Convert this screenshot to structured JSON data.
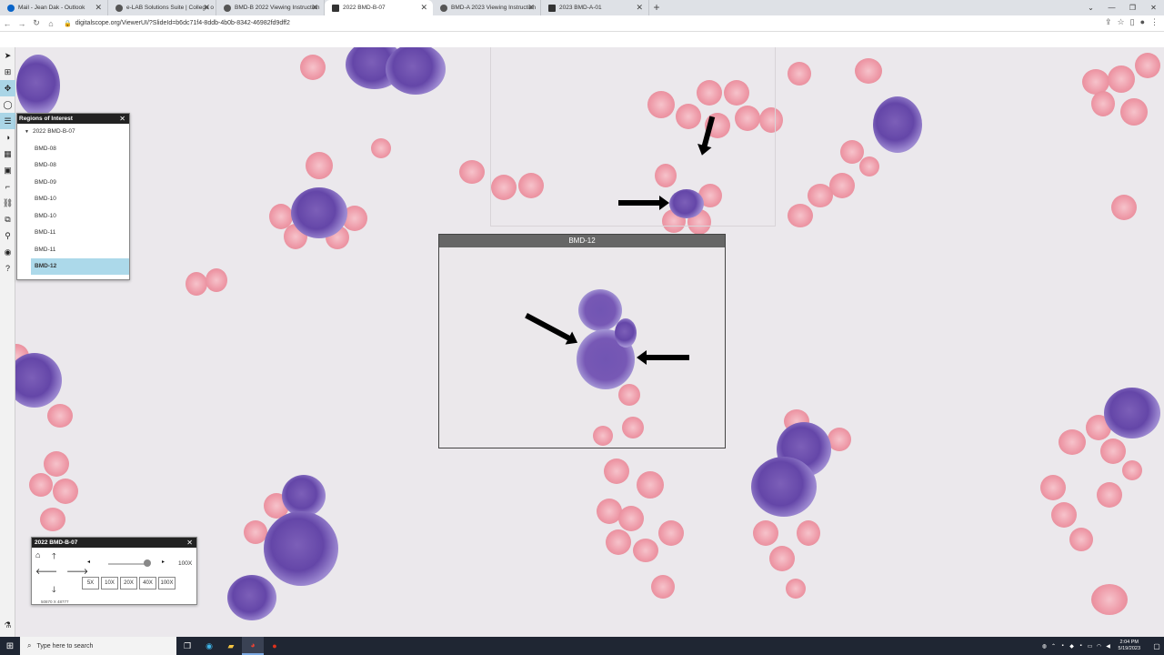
{
  "tabs": [
    {
      "title": "Mail - Jean Dak - Outlook",
      "active": false
    },
    {
      "title": "e-LAB Solutions Suite | College o",
      "active": false
    },
    {
      "title": "BMD-B 2022 Viewing Instruction",
      "active": false
    },
    {
      "title": "2022 BMD-B-07",
      "active": true
    },
    {
      "title": "BMD-A 2023 Viewing Instruction",
      "active": false
    },
    {
      "title": "2023 BMD-A-01",
      "active": false
    }
  ],
  "address": "digitalscope.org/ViewerUI/?SlideId=b6dc71f4-8ddb-4b0b-8342-46982fd9dff2",
  "roi_panel": {
    "title": "Regions of Interest",
    "group": "2022 BMD-B-07",
    "items": [
      "BMD-08",
      "BMD-08",
      "BMD-09",
      "BMD-10",
      "BMD-10",
      "BMD-11",
      "BMD-11",
      "BMD-12"
    ]
  },
  "region": {
    "label": "BMD-12"
  },
  "nav_panel": {
    "title": "2022 BMD-B-07",
    "zoom_level": "100X",
    "zoom_buttons": [
      "5X",
      "10X",
      "20X",
      "40X",
      "100X"
    ],
    "coords": "50870 X 48777"
  },
  "taskbar": {
    "search_placeholder": "Type here to search",
    "time": "2:04 PM",
    "date": "5/19/2023"
  }
}
